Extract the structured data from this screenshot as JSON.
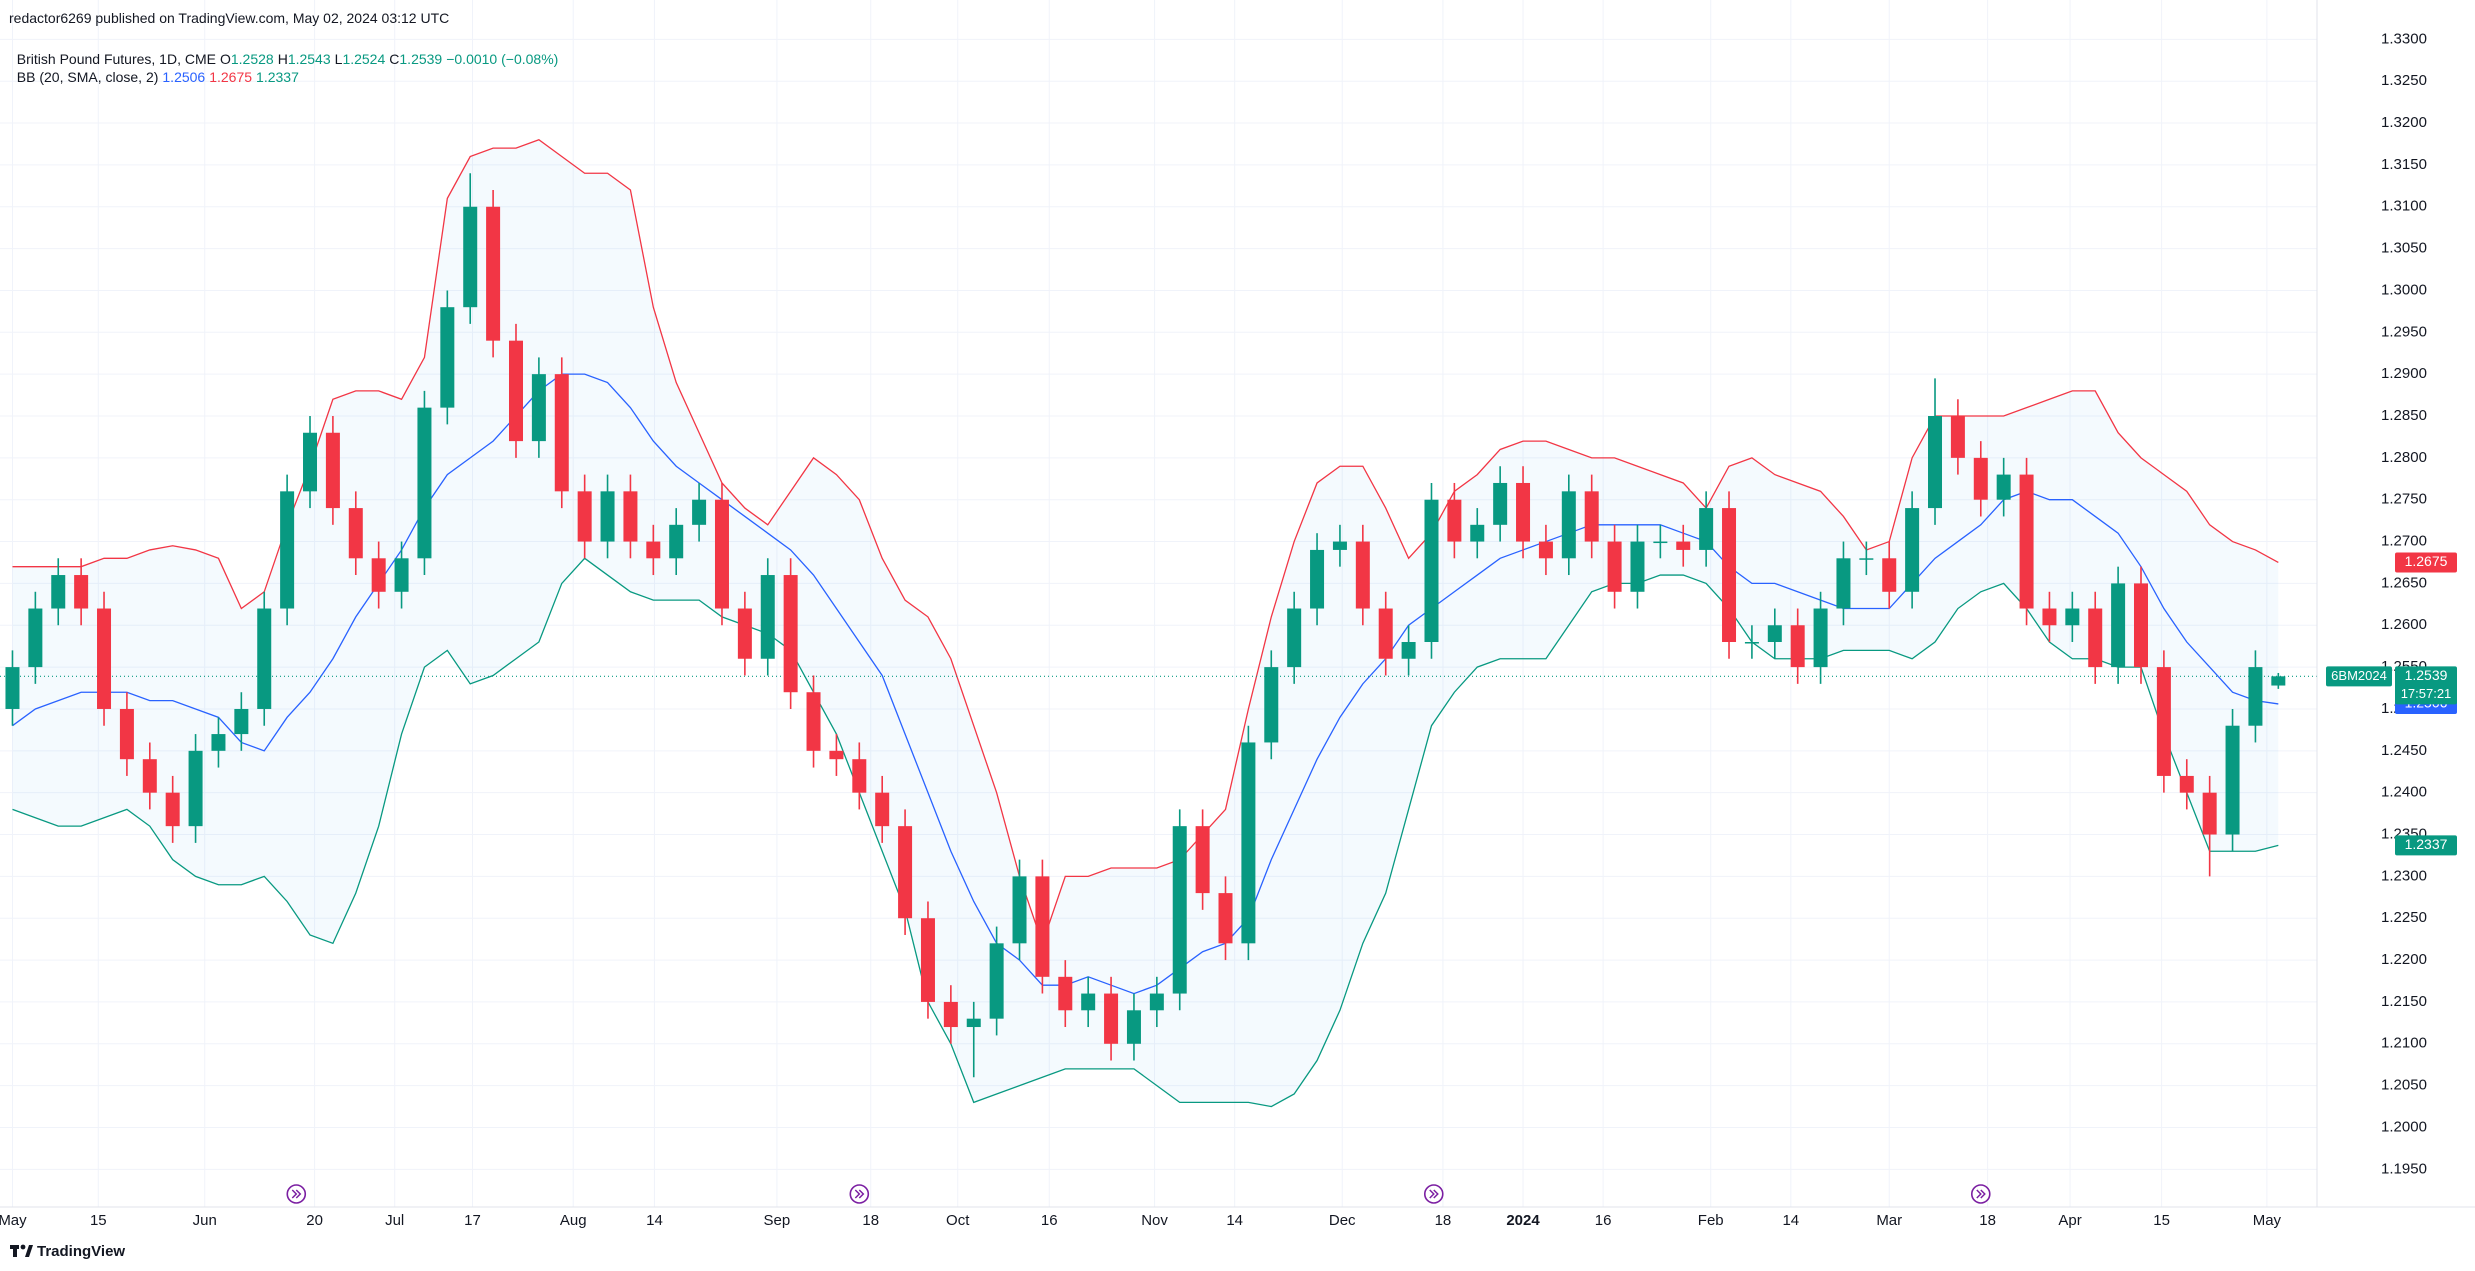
{
  "chart_data": {
    "type": "candlestick",
    "publisher": "redactor6269 published on TradingView.com, May 02, 2024 03:12 UTC",
    "title": "British Pound Futures, 1D, CME",
    "ohlc_labels": [
      "O",
      "H",
      "L",
      "C"
    ],
    "change_label": "−0.0010 (−0.08%)",
    "symbol": "6BM2024",
    "countdown": "17:57:21",
    "branding": "TradingView",
    "up_color": "#089981",
    "down_color": "#f23645",
    "ohlc": [
      [
        1.25,
        1.257,
        1.248,
        1.255
      ],
      [
        1.255,
        1.264,
        1.253,
        1.262
      ],
      [
        1.262,
        1.268,
        1.26,
        1.266
      ],
      [
        1.266,
        1.268,
        1.26,
        1.262
      ],
      [
        1.262,
        1.264,
        1.248,
        1.25
      ],
      [
        1.25,
        1.252,
        1.242,
        1.244
      ],
      [
        1.244,
        1.246,
        1.238,
        1.24
      ],
      [
        1.24,
        1.242,
        1.234,
        1.236
      ],
      [
        1.236,
        1.247,
        1.234,
        1.245
      ],
      [
        1.245,
        1.249,
        1.243,
        1.247
      ],
      [
        1.247,
        1.252,
        1.245,
        1.25
      ],
      [
        1.25,
        1.264,
        1.248,
        1.262
      ],
      [
        1.262,
        1.278,
        1.26,
        1.276
      ],
      [
        1.276,
        1.285,
        1.274,
        1.283
      ],
      [
        1.283,
        1.285,
        1.272,
        1.274
      ],
      [
        1.274,
        1.276,
        1.266,
        1.268
      ],
      [
        1.268,
        1.27,
        1.262,
        1.264
      ],
      [
        1.264,
        1.27,
        1.262,
        1.268
      ],
      [
        1.268,
        1.288,
        1.266,
        1.286
      ],
      [
        1.286,
        1.3,
        1.284,
        1.298
      ],
      [
        1.298,
        1.314,
        1.296,
        1.31
      ],
      [
        1.31,
        1.312,
        1.292,
        1.294
      ],
      [
        1.294,
        1.296,
        1.28,
        1.282
      ],
      [
        1.282,
        1.292,
        1.28,
        1.29
      ],
      [
        1.29,
        1.292,
        1.274,
        1.276
      ],
      [
        1.276,
        1.278,
        1.268,
        1.27
      ],
      [
        1.27,
        1.278,
        1.268,
        1.276
      ],
      [
        1.276,
        1.278,
        1.268,
        1.27
      ],
      [
        1.27,
        1.272,
        1.266,
        1.268
      ],
      [
        1.268,
        1.274,
        1.266,
        1.272
      ],
      [
        1.272,
        1.277,
        1.27,
        1.275
      ],
      [
        1.275,
        1.277,
        1.26,
        1.262
      ],
      [
        1.262,
        1.264,
        1.254,
        1.256
      ],
      [
        1.256,
        1.268,
        1.254,
        1.266
      ],
      [
        1.266,
        1.268,
        1.25,
        1.252
      ],
      [
        1.252,
        1.254,
        1.243,
        1.245
      ],
      [
        1.245,
        1.247,
        1.242,
        1.244
      ],
      [
        1.244,
        1.246,
        1.238,
        1.24
      ],
      [
        1.24,
        1.242,
        1.234,
        1.236
      ],
      [
        1.236,
        1.238,
        1.223,
        1.225
      ],
      [
        1.225,
        1.227,
        1.213,
        1.215
      ],
      [
        1.215,
        1.217,
        1.21,
        1.212
      ],
      [
        1.212,
        1.215,
        1.206,
        1.213
      ],
      [
        1.213,
        1.224,
        1.211,
        1.222
      ],
      [
        1.222,
        1.232,
        1.22,
        1.23
      ],
      [
        1.23,
        1.232,
        1.216,
        1.218
      ],
      [
        1.218,
        1.22,
        1.212,
        1.214
      ],
      [
        1.214,
        1.218,
        1.212,
        1.216
      ],
      [
        1.216,
        1.218,
        1.208,
        1.21
      ],
      [
        1.21,
        1.216,
        1.208,
        1.214
      ],
      [
        1.214,
        1.218,
        1.212,
        1.216
      ],
      [
        1.216,
        1.238,
        1.214,
        1.236
      ],
      [
        1.236,
        1.238,
        1.226,
        1.228
      ],
      [
        1.228,
        1.23,
        1.22,
        1.222
      ],
      [
        1.222,
        1.248,
        1.22,
        1.246
      ],
      [
        1.246,
        1.257,
        1.244,
        1.255
      ],
      [
        1.255,
        1.264,
        1.253,
        1.262
      ],
      [
        1.262,
        1.271,
        1.26,
        1.269
      ],
      [
        1.269,
        1.272,
        1.267,
        1.27
      ],
      [
        1.27,
        1.272,
        1.26,
        1.262
      ],
      [
        1.262,
        1.264,
        1.254,
        1.256
      ],
      [
        1.256,
        1.26,
        1.254,
        1.258
      ],
      [
        1.258,
        1.277,
        1.256,
        1.275
      ],
      [
        1.275,
        1.277,
        1.268,
        1.27
      ],
      [
        1.27,
        1.274,
        1.268,
        1.272
      ],
      [
        1.272,
        1.279,
        1.27,
        1.277
      ],
      [
        1.277,
        1.279,
        1.268,
        1.27
      ],
      [
        1.27,
        1.272,
        1.266,
        1.268
      ],
      [
        1.268,
        1.278,
        1.266,
        1.276
      ],
      [
        1.276,
        1.278,
        1.268,
        1.27
      ],
      [
        1.27,
        1.272,
        1.262,
        1.264
      ],
      [
        1.264,
        1.272,
        1.262,
        1.27
      ],
      [
        1.27,
        1.272,
        1.268,
        1.27
      ],
      [
        1.27,
        1.272,
        1.267,
        1.269
      ],
      [
        1.269,
        1.276,
        1.267,
        1.274
      ],
      [
        1.274,
        1.276,
        1.256,
        1.258
      ],
      [
        1.258,
        1.26,
        1.256,
        1.258
      ],
      [
        1.258,
        1.262,
        1.256,
        1.26
      ],
      [
        1.26,
        1.262,
        1.253,
        1.255
      ],
      [
        1.255,
        1.264,
        1.253,
        1.262
      ],
      [
        1.262,
        1.27,
        1.26,
        1.268
      ],
      [
        1.268,
        1.27,
        1.266,
        1.268
      ],
      [
        1.268,
        1.27,
        1.262,
        1.264
      ],
      [
        1.264,
        1.276,
        1.262,
        1.274
      ],
      [
        1.274,
        1.2895,
        1.272,
        1.285
      ],
      [
        1.285,
        1.287,
        1.278,
        1.28
      ],
      [
        1.28,
        1.282,
        1.273,
        1.275
      ],
      [
        1.275,
        1.28,
        1.273,
        1.278
      ],
      [
        1.278,
        1.28,
        1.26,
        1.262
      ],
      [
        1.262,
        1.264,
        1.258,
        1.26
      ],
      [
        1.26,
        1.264,
        1.258,
        1.262
      ],
      [
        1.262,
        1.264,
        1.253,
        1.255
      ],
      [
        1.255,
        1.267,
        1.253,
        1.265
      ],
      [
        1.265,
        1.267,
        1.253,
        1.255
      ],
      [
        1.255,
        1.257,
        1.24,
        1.242
      ],
      [
        1.242,
        1.244,
        1.238,
        1.24
      ],
      [
        1.24,
        1.242,
        1.23,
        1.235
      ],
      [
        1.235,
        1.25,
        1.233,
        1.248
      ],
      [
        1.248,
        1.257,
        1.246,
        1.255
      ],
      [
        1.2528,
        1.2543,
        1.2524,
        1.2539
      ]
    ],
    "bb": {
      "label": "BB (20, SMA, close, 2)",
      "middle": {
        "color": "#2962ff",
        "values": [
          1.248,
          1.25,
          1.251,
          1.252,
          1.252,
          1.252,
          1.251,
          1.251,
          1.25,
          1.249,
          1.246,
          1.245,
          1.249,
          1.252,
          1.256,
          1.261,
          1.265,
          1.269,
          1.274,
          1.278,
          1.28,
          1.282,
          1.285,
          1.288,
          1.29,
          1.29,
          1.289,
          1.286,
          1.282,
          1.279,
          1.277,
          1.275,
          1.273,
          1.271,
          1.269,
          1.266,
          1.262,
          1.258,
          1.254,
          1.247,
          1.24,
          1.233,
          1.227,
          1.222,
          1.22,
          1.217,
          1.217,
          1.218,
          1.217,
          1.216,
          1.217,
          1.219,
          1.221,
          1.222,
          1.225,
          1.232,
          1.238,
          1.244,
          1.249,
          1.253,
          1.256,
          1.26,
          1.262,
          1.264,
          1.266,
          1.268,
          1.269,
          1.27,
          1.271,
          1.272,
          1.272,
          1.272,
          1.272,
          1.271,
          1.27,
          1.267,
          1.265,
          1.265,
          1.264,
          1.263,
          1.262,
          1.262,
          1.262,
          1.265,
          1.268,
          1.27,
          1.272,
          1.275,
          1.276,
          1.275,
          1.275,
          1.273,
          1.271,
          1.267,
          1.262,
          1.258,
          1.255,
          1.252,
          1.251,
          1.2506
        ]
      },
      "upper": {
        "color": "#f23645",
        "values": [
          1.267,
          1.267,
          1.267,
          1.267,
          1.268,
          1.268,
          1.269,
          1.2695,
          1.269,
          1.268,
          1.262,
          1.264,
          1.272,
          1.279,
          1.287,
          1.288,
          1.288,
          1.287,
          1.292,
          1.311,
          1.316,
          1.317,
          1.317,
          1.318,
          1.316,
          1.314,
          1.314,
          1.312,
          1.298,
          1.289,
          1.283,
          1.277,
          1.274,
          1.272,
          1.276,
          1.28,
          1.278,
          1.275,
          1.268,
          1.263,
          1.261,
          1.256,
          1.248,
          1.24,
          1.23,
          1.222,
          1.23,
          1.23,
          1.231,
          1.231,
          1.231,
          1.232,
          1.235,
          1.238,
          1.25,
          1.261,
          1.27,
          1.277,
          1.279,
          1.279,
          1.274,
          1.268,
          1.271,
          1.276,
          1.278,
          1.281,
          1.282,
          1.282,
          1.281,
          1.28,
          1.28,
          1.279,
          1.278,
          1.277,
          1.274,
          1.279,
          1.28,
          1.278,
          1.277,
          1.276,
          1.273,
          1.269,
          1.27,
          1.28,
          1.285,
          1.285,
          1.285,
          1.285,
          1.286,
          1.287,
          1.288,
          1.288,
          1.283,
          1.28,
          1.278,
          1.276,
          1.272,
          1.27,
          1.269,
          1.2675
        ]
      },
      "lower": {
        "color": "#089981",
        "values": [
          1.238,
          1.237,
          1.236,
          1.236,
          1.237,
          1.238,
          1.236,
          1.232,
          1.23,
          1.229,
          1.229,
          1.23,
          1.227,
          1.223,
          1.222,
          1.228,
          1.236,
          1.247,
          1.255,
          1.257,
          1.253,
          1.254,
          1.256,
          1.258,
          1.265,
          1.268,
          1.266,
          1.264,
          1.263,
          1.263,
          1.263,
          1.261,
          1.26,
          1.259,
          1.257,
          1.252,
          1.247,
          1.24,
          1.233,
          1.226,
          1.215,
          1.21,
          1.203,
          1.204,
          1.205,
          1.206,
          1.207,
          1.207,
          1.207,
          1.207,
          1.205,
          1.203,
          1.203,
          1.203,
          1.203,
          1.2025,
          1.204,
          1.208,
          1.214,
          1.222,
          1.228,
          1.238,
          1.248,
          1.252,
          1.255,
          1.256,
          1.256,
          1.256,
          1.26,
          1.264,
          1.265,
          1.265,
          1.266,
          1.266,
          1.265,
          1.262,
          1.258,
          1.256,
          1.256,
          1.256,
          1.257,
          1.257,
          1.257,
          1.256,
          1.258,
          1.262,
          1.264,
          1.265,
          1.262,
          1.258,
          1.256,
          1.256,
          1.255,
          1.255,
          1.247,
          1.24,
          1.233,
          1.233,
          1.233,
          1.2337
        ]
      }
    },
    "xlim": [
      -0.545,
      100.69
    ],
    "xticks": [
      {
        "value": 0,
        "label": "May"
      },
      {
        "value": 3.75,
        "label": "15"
      },
      {
        "value": 8.4,
        "label": "Jun"
      },
      {
        "value": 13.2,
        "label": "20"
      },
      {
        "value": 16.7,
        "label": "Jul"
      },
      {
        "value": 20.1,
        "label": "17"
      },
      {
        "value": 24.5,
        "label": "Aug"
      },
      {
        "value": 28.05,
        "label": "14"
      },
      {
        "value": 33.4,
        "label": "Sep"
      },
      {
        "value": 37.5,
        "label": "18"
      },
      {
        "value": 41.3,
        "label": "Oct"
      },
      {
        "value": 45.3,
        "label": "16"
      },
      {
        "value": 49.9,
        "label": "Nov"
      },
      {
        "value": 53.4,
        "label": "14"
      },
      {
        "value": 58.1,
        "label": "Dec"
      },
      {
        "value": 62.5,
        "label": "18"
      },
      {
        "value": 66.0,
        "label": "2024"
      },
      {
        "value": 69.5,
        "label": "16"
      },
      {
        "value": 74.2,
        "label": "Feb"
      },
      {
        "value": 77.7,
        "label": "14"
      },
      {
        "value": 82.0,
        "label": "Mar"
      },
      {
        "value": 86.3,
        "label": "18"
      },
      {
        "value": 89.9,
        "label": "Apr"
      },
      {
        "value": 93.9,
        "label": "15"
      },
      {
        "value": 98.5,
        "label": "May"
      }
    ],
    "ylim": [
      1.1905,
      1.3347
    ],
    "yticks": [
      {
        "value": 1.195,
        "label": "1.1950"
      },
      {
        "value": 1.2,
        "label": "1.2000"
      },
      {
        "value": 1.205,
        "label": "1.2050"
      },
      {
        "value": 1.21,
        "label": "1.2100"
      },
      {
        "value": 1.215,
        "label": "1.2150"
      },
      {
        "value": 1.22,
        "label": "1.2200"
      },
      {
        "value": 1.225,
        "label": "1.2250"
      },
      {
        "value": 1.23,
        "label": "1.2300"
      },
      {
        "value": 1.235,
        "label": "1.2350"
      },
      {
        "value": 1.24,
        "label": "1.2400"
      },
      {
        "value": 1.245,
        "label": "1.2450"
      },
      {
        "value": 1.25,
        "label": "1.2500"
      },
      {
        "value": 1.255,
        "label": "1.2550"
      },
      {
        "value": 1.26,
        "label": "1.2600"
      },
      {
        "value": 1.265,
        "label": "1.2650"
      },
      {
        "value": 1.27,
        "label": "1.2700"
      },
      {
        "value": 1.275,
        "label": "1.2750"
      },
      {
        "value": 1.28,
        "label": "1.2800"
      },
      {
        "value": 1.285,
        "label": "1.2850"
      },
      {
        "value": 1.29,
        "label": "1.2900"
      },
      {
        "value": 1.295,
        "label": "1.2950"
      },
      {
        "value": 1.3,
        "label": "1.3000"
      },
      {
        "value": 1.305,
        "label": "1.3050"
      },
      {
        "value": 1.31,
        "label": "1.3100"
      },
      {
        "value": 1.315,
        "label": "1.3150"
      },
      {
        "value": 1.32,
        "label": "1.3200"
      },
      {
        "value": 1.325,
        "label": "1.3250"
      },
      {
        "value": 1.33,
        "label": "1.3300"
      }
    ],
    "grid": true
  }
}
